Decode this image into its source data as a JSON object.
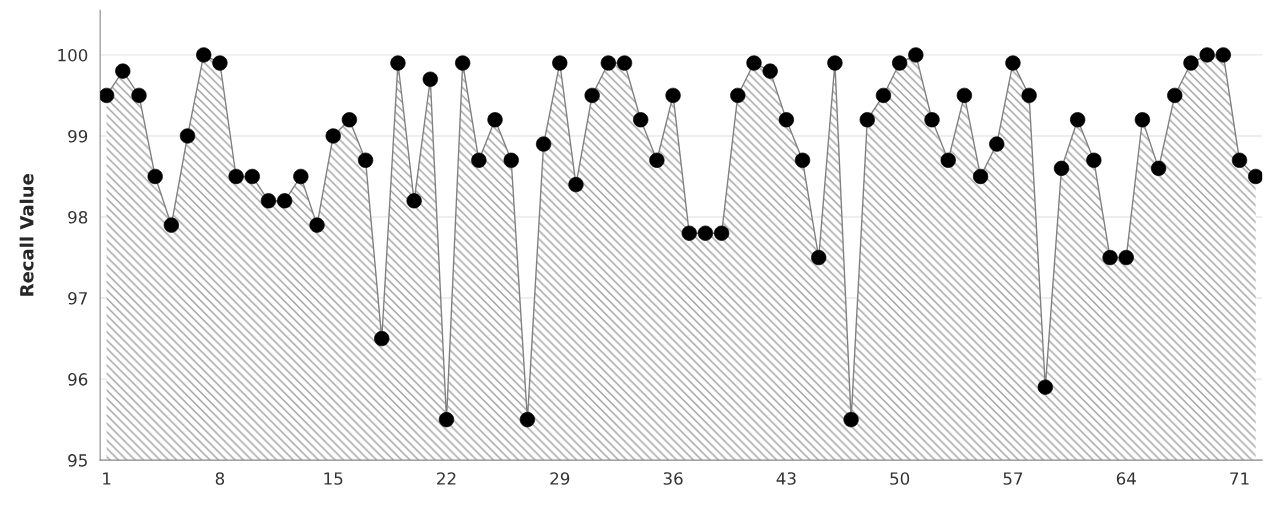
{
  "chart_data": {
    "type": "area",
    "ylabel": "Recall Value",
    "x": [
      1,
      2,
      3,
      4,
      5,
      6,
      7,
      8,
      9,
      10,
      11,
      12,
      13,
      14,
      15,
      16,
      17,
      18,
      19,
      20,
      21,
      22,
      23,
      24,
      25,
      26,
      27,
      28,
      29,
      30,
      31,
      32,
      33,
      34,
      35,
      36,
      37,
      38,
      39,
      40,
      41,
      42,
      43,
      44,
      45,
      46,
      47,
      48,
      49,
      50,
      51,
      52,
      53,
      54,
      55,
      56,
      57,
      58,
      59,
      60,
      61,
      62,
      63,
      64,
      65,
      66,
      67,
      68,
      69,
      70,
      71,
      72
    ],
    "series": [
      {
        "color": "#808080",
        "values": [
          99.5,
          99.8,
          99.5,
          98.5,
          97.9,
          99.0,
          100.0,
          99.9,
          98.5,
          98.5,
          98.2,
          98.2,
          98.5,
          97.9,
          99.0,
          99.2,
          98.7,
          96.5,
          99.9,
          98.2,
          99.7,
          95.5,
          99.9,
          98.7,
          99.2,
          98.7,
          95.5,
          98.9,
          99.9,
          98.4,
          99.5,
          99.9,
          99.9,
          99.2,
          98.7,
          99.5,
          97.8,
          97.8,
          97.8,
          99.5,
          99.9,
          99.8,
          99.2,
          98.7,
          97.5,
          99.9,
          95.5,
          99.2,
          99.5,
          99.9,
          100.0,
          99.2,
          98.7,
          99.5,
          98.5,
          98.9,
          99.9,
          99.5,
          95.9,
          98.6,
          99.2,
          98.7,
          97.5,
          97.5,
          99.2,
          98.6,
          99.5,
          99.9,
          100.0,
          100.0,
          98.7,
          98.5
        ]
      }
    ],
    "xlim": [
      0.6,
      72.4
    ],
    "xticks": [
      1,
      8,
      15,
      22,
      29,
      36,
      43,
      50,
      57,
      64,
      71
    ],
    "ylim": [
      95,
      100.55
    ],
    "yticks": [
      95,
      96,
      97,
      98,
      99,
      100
    ],
    "grid": "y",
    "marker": "circle",
    "line_style": "solid",
    "legend": false
  }
}
